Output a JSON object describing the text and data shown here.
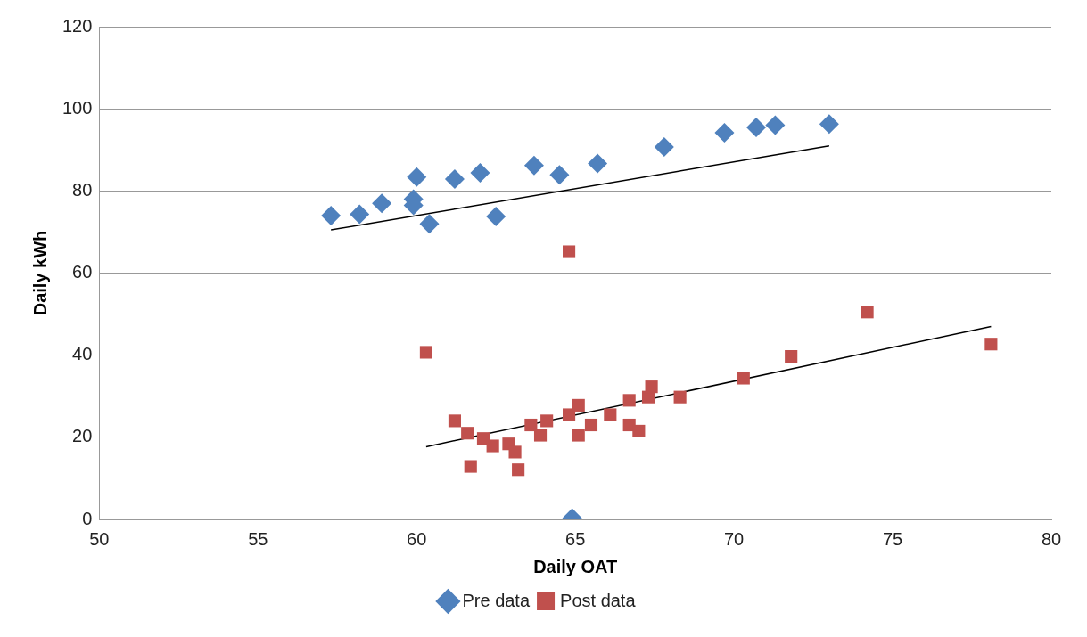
{
  "chart_data": {
    "type": "scatter",
    "xlabel": "Daily OAT",
    "ylabel": "Daily kWh",
    "xlim": [
      50,
      80
    ],
    "xticks": [
      50,
      55,
      60,
      65,
      70,
      75,
      80
    ],
    "ylim": [
      0,
      120
    ],
    "yticks": [
      0,
      20,
      40,
      60,
      80,
      100,
      120
    ],
    "grid": "y",
    "legend": "bottom",
    "series": [
      {
        "name": "Pre data",
        "color": "#4f81bd",
        "marker": "diamond",
        "x": [
          57.3,
          58.2,
          58.9,
          60.0,
          59.9,
          59.9,
          60.4,
          61.2,
          62.0,
          62.5,
          63.7,
          64.5,
          65.7,
          67.8,
          69.7,
          70.7,
          71.3,
          73.0,
          64.9
        ],
        "values": [
          74,
          74.3,
          77,
          83.4,
          78,
          76.5,
          72,
          82.9,
          84.4,
          73.8,
          86.2,
          83.9,
          86.7,
          90.7,
          94.2,
          95.5,
          96,
          96.3,
          0.3
        ]
      },
      {
        "name": "Post data",
        "color": "#c0504d",
        "marker": "square",
        "x": [
          64.8,
          60.3,
          74.2,
          71.8,
          70.3,
          78.1,
          68.3,
          61.2,
          61.6,
          61.7,
          62.1,
          62.4,
          62.9,
          63.1,
          63.2,
          63.6,
          64.1,
          63.9,
          64.8,
          65.1,
          65.1,
          65.5,
          66.1,
          66.7,
          66.7,
          67.0,
          67.3,
          67.4
        ],
        "values": [
          65.2,
          40.7,
          50.5,
          39.7,
          34.4,
          42.7,
          29.8,
          24,
          21,
          12.9,
          19.7,
          17.9,
          18.4,
          16.4,
          12.1,
          23,
          24,
          20.5,
          25.5,
          27.8,
          20.5,
          23,
          25.5,
          29,
          23,
          21.5,
          29.8,
          32.3
        ]
      },
      {
        "type": "line",
        "color": "#000000",
        "marker": "none",
        "x": [
          57.3,
          73.0
        ],
        "values": [
          70.5,
          91
        ]
      },
      {
        "type": "line",
        "color": "#000000",
        "marker": "none",
        "x": [
          60.3,
          78.1
        ],
        "values": [
          17.7,
          47
        ]
      }
    ]
  }
}
